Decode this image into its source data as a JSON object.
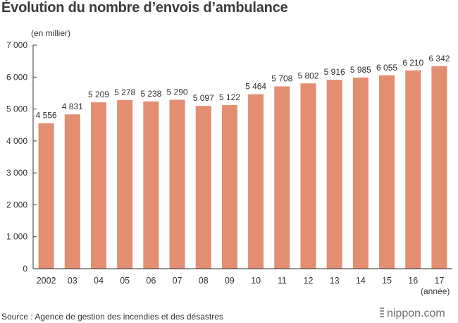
{
  "title": "Évolution du nombre d’envois d’ambulance",
  "unit_label": "(en millier)",
  "x_unit_label": "(année)",
  "source": "Source : Agence de gestion des incendies et des désastres",
  "brand": {
    "name": "nippon",
    "dot": ".",
    "suffix": "com"
  },
  "colors": {
    "bar": "#e38d71",
    "axis": "#333333",
    "text": "#333333"
  },
  "chart_data": {
    "type": "bar",
    "categories": [
      "2002",
      "03",
      "04",
      "05",
      "06",
      "07",
      "08",
      "09",
      "10",
      "11",
      "12",
      "13",
      "14",
      "15",
      "16",
      "17"
    ],
    "values": [
      4556,
      4831,
      5209,
      5278,
      5238,
      5290,
      5097,
      5122,
      5464,
      5708,
      5802,
      5916,
      5985,
      6055,
      6210,
      6342
    ],
    "data_labels": [
      "4 556",
      "4 831",
      "5 209",
      "5 278",
      "5 238",
      "5 290",
      "5 097",
      "5 122",
      "5 464",
      "5 708",
      "5 802",
      "5 916",
      "5 985",
      "6 055",
      "6 210",
      "6 342"
    ],
    "yticks": [
      0,
      1000,
      2000,
      3000,
      4000,
      5000,
      6000,
      7000
    ],
    "ytick_labels": [
      "0",
      "1 000",
      "2 000",
      "3 000",
      "4 000",
      "5 000",
      "6 000",
      "7 000"
    ],
    "ylim": [
      0,
      7000
    ],
    "title": "Évolution du nombre d’envois d’ambulance",
    "xlabel": "(année)",
    "ylabel": "(en millier)",
    "grid": false,
    "legend": "none"
  }
}
